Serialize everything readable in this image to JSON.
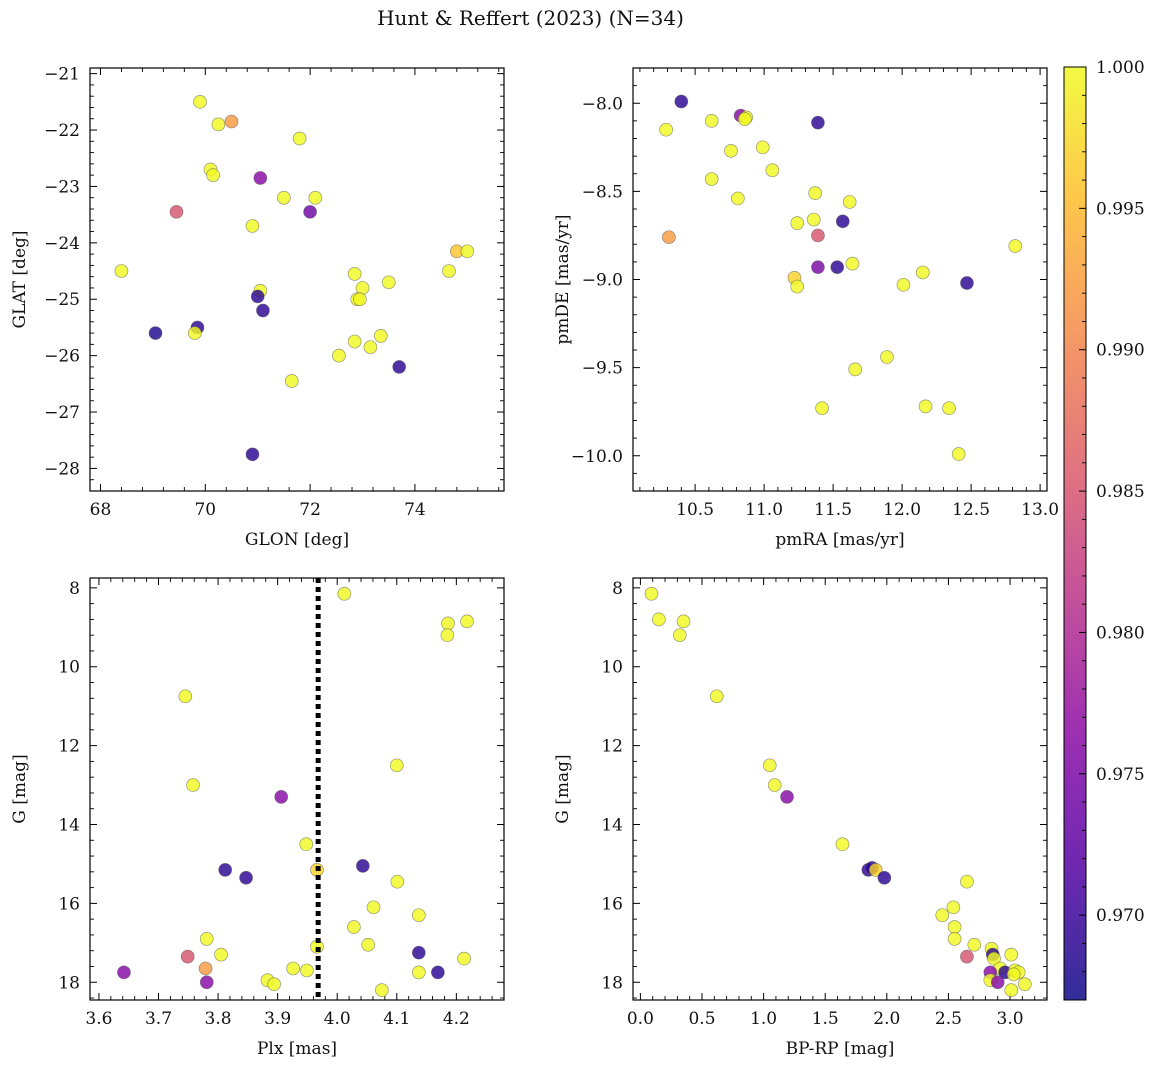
{
  "title": "Hunt & Reffert (2023) (N=34)",
  "colorbar": {
    "cmap": "plasma",
    "range": [
      0.967,
      1.0
    ],
    "ticks": [
      0.97,
      0.975,
      0.98,
      0.985,
      0.99,
      0.995,
      1.0
    ],
    "tick_labels": [
      "0.970",
      "0.975",
      "0.980",
      "0.985",
      "0.990",
      "0.995",
      "1.000"
    ]
  },
  "chart_data": [
    {
      "type": "scatter",
      "panel": "top-left",
      "xlabel": "GLON [deg]",
      "ylabel": "GLAT [deg]",
      "xlim": [
        67.8,
        75.7
      ],
      "ylim": [
        -28.4,
        -20.9
      ],
      "xticks": [
        68,
        70,
        72,
        74
      ],
      "yticks": [
        -21,
        -22,
        -23,
        -24,
        -25,
        -26,
        -27,
        -28
      ],
      "points": [
        {
          "x": 69.9,
          "y": -21.5,
          "c": 1.0
        },
        {
          "x": 70.5,
          "y": -21.85,
          "c": 0.992
        },
        {
          "x": 70.25,
          "y": -21.9,
          "c": 1.0
        },
        {
          "x": 71.8,
          "y": -22.15,
          "c": 1.0
        },
        {
          "x": 70.1,
          "y": -22.7,
          "c": 1.0
        },
        {
          "x": 70.15,
          "y": -22.8,
          "c": 1.0
        },
        {
          "x": 71.05,
          "y": -22.85,
          "c": 0.976
        },
        {
          "x": 71.5,
          "y": -23.2,
          "c": 1.0
        },
        {
          "x": 72.1,
          "y": -23.2,
          "c": 1.0
        },
        {
          "x": 69.45,
          "y": -23.45,
          "c": 0.985
        },
        {
          "x": 72.0,
          "y": -23.45,
          "c": 0.974
        },
        {
          "x": 70.9,
          "y": -23.7,
          "c": 1.0
        },
        {
          "x": 68.4,
          "y": -24.5,
          "c": 1.0
        },
        {
          "x": 72.85,
          "y": -24.55,
          "c": 1.0
        },
        {
          "x": 74.8,
          "y": -24.15,
          "c": 0.996
        },
        {
          "x": 75.0,
          "y": -24.15,
          "c": 1.0
        },
        {
          "x": 74.65,
          "y": -24.5,
          "c": 1.0
        },
        {
          "x": 73.5,
          "y": -24.7,
          "c": 1.0
        },
        {
          "x": 73.0,
          "y": -24.8,
          "c": 1.0
        },
        {
          "x": 71.05,
          "y": -24.85,
          "c": 1.0
        },
        {
          "x": 71.0,
          "y": -24.95,
          "c": 0.969
        },
        {
          "x": 72.9,
          "y": -25.0,
          "c": 1.0
        },
        {
          "x": 72.95,
          "y": -25.0,
          "c": 1.0
        },
        {
          "x": 71.1,
          "y": -25.2,
          "c": 0.969
        },
        {
          "x": 69.05,
          "y": -25.6,
          "c": 0.968
        },
        {
          "x": 69.85,
          "y": -25.5,
          "c": 0.969
        },
        {
          "x": 69.8,
          "y": -25.6,
          "c": 1.0
        },
        {
          "x": 73.35,
          "y": -25.65,
          "c": 1.0
        },
        {
          "x": 72.85,
          "y": -25.75,
          "c": 1.0
        },
        {
          "x": 73.15,
          "y": -25.85,
          "c": 1.0
        },
        {
          "x": 72.55,
          "y": -26.0,
          "c": 1.0
        },
        {
          "x": 73.7,
          "y": -26.2,
          "c": 0.969
        },
        {
          "x": 71.65,
          "y": -26.45,
          "c": 1.0
        },
        {
          "x": 70.9,
          "y": -27.75,
          "c": 0.969
        }
      ]
    },
    {
      "type": "scatter",
      "panel": "top-right",
      "xlabel": "pmRA [mas/yr]",
      "ylabel": "pmDE [mas/yr]",
      "xlim": [
        10.05,
        13.05
      ],
      "ylim": [
        -10.2,
        -7.8
      ],
      "xticks": [
        10.5,
        11.0,
        11.5,
        12.0,
        12.5,
        13.0
      ],
      "xtick_labels": [
        "10.5",
        "11.0",
        "11.5",
        "12.0",
        "12.5",
        "13.0"
      ],
      "yticks": [
        -8.0,
        -8.5,
        -9.0,
        -9.5,
        -10.0
      ],
      "ytick_labels": [
        "−8.0",
        "−8.5",
        "−9.0",
        "−9.5",
        "−10.0"
      ],
      "points": [
        {
          "x": 10.4,
          "y": -7.99,
          "c": 0.969
        },
        {
          "x": 10.29,
          "y": -8.15,
          "c": 1.0
        },
        {
          "x": 10.62,
          "y": -8.1,
          "c": 1.0
        },
        {
          "x": 10.83,
          "y": -8.07,
          "c": 0.976
        },
        {
          "x": 10.87,
          "y": -8.08,
          "c": 1.0
        },
        {
          "x": 11.39,
          "y": -8.11,
          "c": 0.969
        },
        {
          "x": 10.99,
          "y": -8.25,
          "c": 1.0
        },
        {
          "x": 10.76,
          "y": -8.27,
          "c": 1.0
        },
        {
          "x": 11.06,
          "y": -8.38,
          "c": 1.0
        },
        {
          "x": 10.62,
          "y": -8.43,
          "c": 1.0
        },
        {
          "x": 11.37,
          "y": -8.51,
          "c": 1.0
        },
        {
          "x": 10.81,
          "y": -8.54,
          "c": 1.0
        },
        {
          "x": 11.62,
          "y": -8.56,
          "c": 1.0
        },
        {
          "x": 11.36,
          "y": -8.66,
          "c": 1.0
        },
        {
          "x": 11.24,
          "y": -8.68,
          "c": 1.0
        },
        {
          "x": 11.57,
          "y": -8.67,
          "c": 0.969
        },
        {
          "x": 11.39,
          "y": -8.75,
          "c": 0.985
        },
        {
          "x": 10.31,
          "y": -8.76,
          "c": 0.992
        },
        {
          "x": 12.82,
          "y": -8.81,
          "c": 1.0
        },
        {
          "x": 11.64,
          "y": -8.91,
          "c": 1.0
        },
        {
          "x": 11.39,
          "y": -8.93,
          "c": 0.975
        },
        {
          "x": 11.53,
          "y": -8.93,
          "c": 0.969
        },
        {
          "x": 12.15,
          "y": -8.96,
          "c": 1.0
        },
        {
          "x": 11.22,
          "y": -8.99,
          "c": 0.997
        },
        {
          "x": 11.24,
          "y": -9.04,
          "c": 1.0
        },
        {
          "x": 12.01,
          "y": -9.03,
          "c": 1.0
        },
        {
          "x": 12.47,
          "y": -9.02,
          "c": 0.969
        },
        {
          "x": 11.89,
          "y": -9.44,
          "c": 1.0
        },
        {
          "x": 11.66,
          "y": -9.51,
          "c": 1.0
        },
        {
          "x": 11.42,
          "y": -9.73,
          "c": 1.0
        },
        {
          "x": 12.17,
          "y": -9.72,
          "c": 1.0
        },
        {
          "x": 12.34,
          "y": -9.73,
          "c": 1.0
        },
        {
          "x": 12.41,
          "y": -9.99,
          "c": 1.0
        },
        {
          "x": 10.86,
          "y": -8.09,
          "c": 1.0
        }
      ]
    },
    {
      "type": "scatter",
      "panel": "bottom-left",
      "xlabel": "Plx [mas]",
      "ylabel": "G [mag]",
      "xlim": [
        3.585,
        4.28
      ],
      "ylim": [
        18.45,
        7.75
      ],
      "xticks": [
        3.6,
        3.7,
        3.8,
        3.9,
        4.0,
        4.1,
        4.2
      ],
      "xtick_labels": [
        "3.6",
        "3.7",
        "3.8",
        "3.9",
        "4.0",
        "4.1",
        "4.2"
      ],
      "yticks": [
        8,
        10,
        12,
        14,
        16,
        18
      ],
      "vline": {
        "x": 3.968,
        "style": "dotted",
        "color": "#000000"
      },
      "points": [
        {
          "x": 4.012,
          "y": 8.15,
          "c": 1.0
        },
        {
          "x": 4.218,
          "y": 8.85,
          "c": 1.0
        },
        {
          "x": 4.186,
          "y": 8.9,
          "c": 1.0
        },
        {
          "x": 4.185,
          "y": 9.2,
          "c": 1.0
        },
        {
          "x": 3.745,
          "y": 10.75,
          "c": 1.0
        },
        {
          "x": 4.1,
          "y": 12.5,
          "c": 1.0
        },
        {
          "x": 3.758,
          "y": 13.0,
          "c": 1.0
        },
        {
          "x": 3.906,
          "y": 13.3,
          "c": 0.976
        },
        {
          "x": 3.948,
          "y": 14.5,
          "c": 1.0
        },
        {
          "x": 4.043,
          "y": 15.05,
          "c": 0.969
        },
        {
          "x": 3.812,
          "y": 15.15,
          "c": 0.969
        },
        {
          "x": 3.966,
          "y": 15.15,
          "c": 0.997
        },
        {
          "x": 3.847,
          "y": 15.35,
          "c": 0.969
        },
        {
          "x": 4.101,
          "y": 15.45,
          "c": 1.0
        },
        {
          "x": 4.061,
          "y": 16.1,
          "c": 1.0
        },
        {
          "x": 4.137,
          "y": 16.3,
          "c": 1.0
        },
        {
          "x": 4.028,
          "y": 16.6,
          "c": 1.0
        },
        {
          "x": 3.781,
          "y": 16.9,
          "c": 1.0
        },
        {
          "x": 4.052,
          "y": 17.05,
          "c": 1.0
        },
        {
          "x": 3.966,
          "y": 17.1,
          "c": 1.0
        },
        {
          "x": 4.137,
          "y": 17.25,
          "c": 0.969
        },
        {
          "x": 3.805,
          "y": 17.3,
          "c": 1.0
        },
        {
          "x": 3.749,
          "y": 17.35,
          "c": 0.985
        },
        {
          "x": 4.213,
          "y": 17.4,
          "c": 1.0
        },
        {
          "x": 3.779,
          "y": 17.65,
          "c": 0.992
        },
        {
          "x": 3.926,
          "y": 17.65,
          "c": 1.0
        },
        {
          "x": 3.642,
          "y": 17.75,
          "c": 0.976
        },
        {
          "x": 3.949,
          "y": 17.7,
          "c": 1.0
        },
        {
          "x": 4.137,
          "y": 17.75,
          "c": 1.0
        },
        {
          "x": 4.169,
          "y": 17.75,
          "c": 0.969
        },
        {
          "x": 3.883,
          "y": 17.95,
          "c": 1.0
        },
        {
          "x": 3.781,
          "y": 18.0,
          "c": 0.976
        },
        {
          "x": 3.894,
          "y": 18.05,
          "c": 1.0
        },
        {
          "x": 4.075,
          "y": 18.2,
          "c": 1.0
        }
      ]
    },
    {
      "type": "scatter",
      "panel": "bottom-right",
      "xlabel": "BP-RP [mag]",
      "ylabel": "G [mag]",
      "xlim": [
        -0.06,
        3.3
      ],
      "ylim": [
        18.45,
        7.75
      ],
      "xticks": [
        0.0,
        0.5,
        1.0,
        1.5,
        2.0,
        2.5,
        3.0
      ],
      "xtick_labels": [
        "0.0",
        "0.5",
        "1.0",
        "1.5",
        "2.0",
        "2.5",
        "3.0"
      ],
      "yticks": [
        8,
        10,
        12,
        14,
        16,
        18
      ],
      "points": [
        {
          "x": 0.09,
          "y": 8.15,
          "c": 1.0
        },
        {
          "x": 0.15,
          "y": 8.8,
          "c": 1.0
        },
        {
          "x": 0.35,
          "y": 8.85,
          "c": 1.0
        },
        {
          "x": 0.32,
          "y": 9.2,
          "c": 1.0
        },
        {
          "x": 0.62,
          "y": 10.75,
          "c": 1.0
        },
        {
          "x": 1.05,
          "y": 12.5,
          "c": 1.0
        },
        {
          "x": 1.09,
          "y": 13.0,
          "c": 1.0
        },
        {
          "x": 1.19,
          "y": 13.3,
          "c": 0.976
        },
        {
          "x": 1.64,
          "y": 14.5,
          "c": 1.0
        },
        {
          "x": 1.85,
          "y": 15.15,
          "c": 0.969
        },
        {
          "x": 1.88,
          "y": 15.1,
          "c": 0.969
        },
        {
          "x": 1.91,
          "y": 15.15,
          "c": 0.997
        },
        {
          "x": 1.98,
          "y": 15.35,
          "c": 0.969
        },
        {
          "x": 2.65,
          "y": 15.45,
          "c": 1.0
        },
        {
          "x": 2.54,
          "y": 16.1,
          "c": 1.0
        },
        {
          "x": 2.45,
          "y": 16.3,
          "c": 1.0
        },
        {
          "x": 2.55,
          "y": 16.6,
          "c": 1.0
        },
        {
          "x": 2.55,
          "y": 16.9,
          "c": 1.0
        },
        {
          "x": 2.71,
          "y": 17.05,
          "c": 1.0
        },
        {
          "x": 2.85,
          "y": 17.15,
          "c": 1.0
        },
        {
          "x": 2.86,
          "y": 17.3,
          "c": 0.969
        },
        {
          "x": 3.01,
          "y": 17.3,
          "c": 1.0
        },
        {
          "x": 2.65,
          "y": 17.35,
          "c": 0.985
        },
        {
          "x": 2.87,
          "y": 17.4,
          "c": 1.0
        },
        {
          "x": 2.92,
          "y": 17.65,
          "c": 1.0
        },
        {
          "x": 2.84,
          "y": 17.75,
          "c": 0.976
        },
        {
          "x": 2.96,
          "y": 17.75,
          "c": 0.969
        },
        {
          "x": 3.04,
          "y": 17.7,
          "c": 1.0
        },
        {
          "x": 3.07,
          "y": 17.75,
          "c": 1.0
        },
        {
          "x": 2.84,
          "y": 17.95,
          "c": 1.0
        },
        {
          "x": 2.9,
          "y": 18.0,
          "c": 0.976
        },
        {
          "x": 3.12,
          "y": 18.05,
          "c": 1.0
        },
        {
          "x": 3.01,
          "y": 18.2,
          "c": 1.0
        },
        {
          "x": 3.03,
          "y": 17.8,
          "c": 1.0
        }
      ]
    }
  ]
}
